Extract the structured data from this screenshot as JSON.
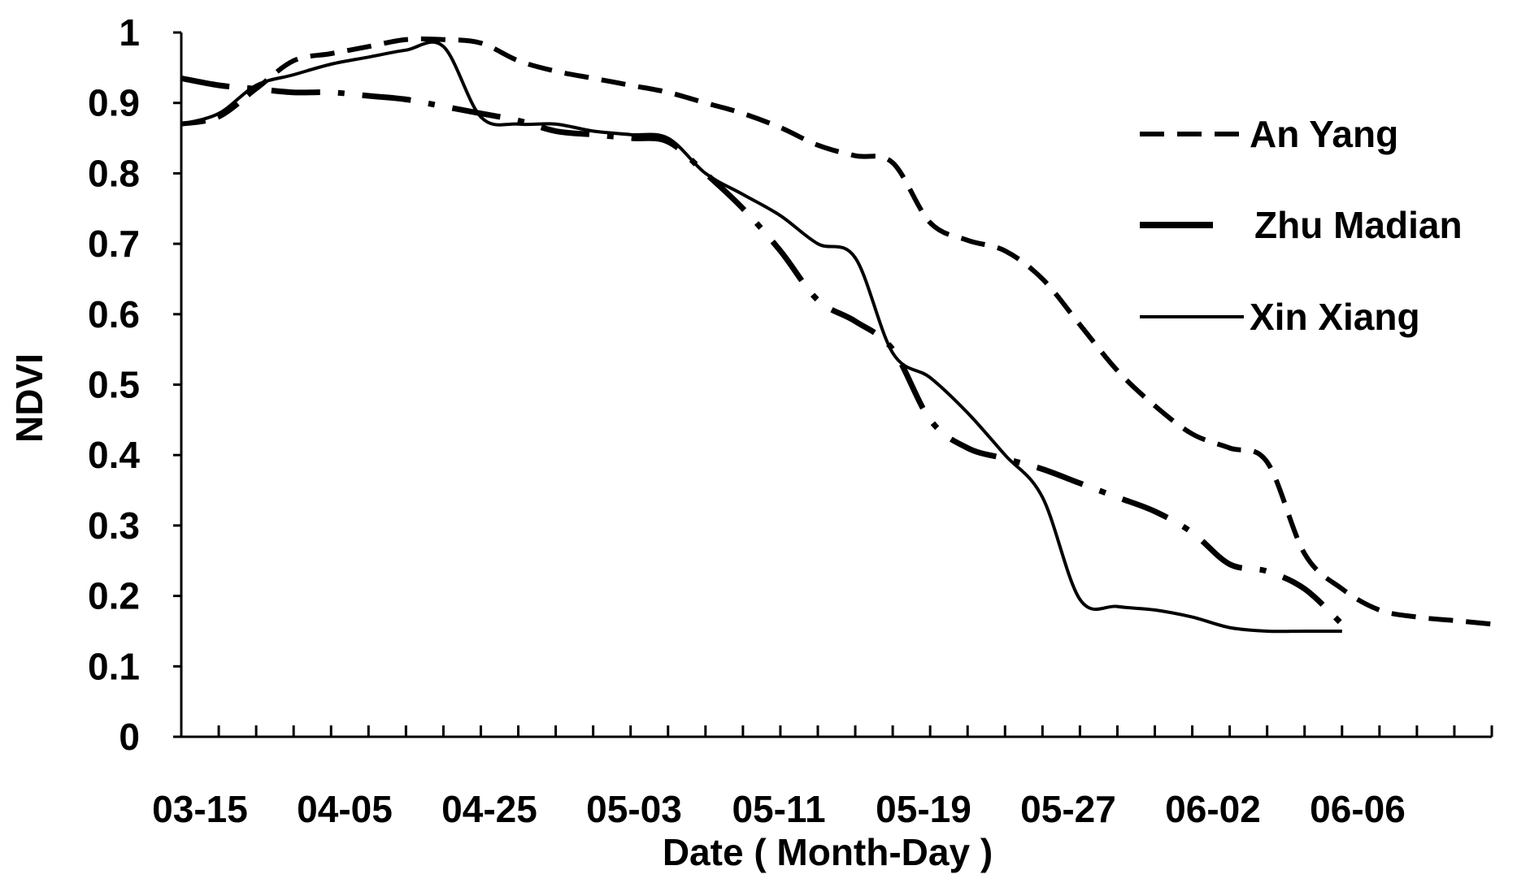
{
  "chart_data": {
    "type": "line",
    "xlabel": "Date ( Month-Day )",
    "ylabel": "NDVI",
    "ylim": [
      0,
      1
    ],
    "yticks": [
      "0",
      "0.1",
      "0.2",
      "0.3",
      "0.4",
      "0.5",
      "0.6",
      "0.7",
      "0.8",
      "0.9",
      "1"
    ],
    "x_tick_labels": [
      "03-15",
      "04-05",
      "04-25",
      "05-03",
      "05-11",
      "05-19",
      "05-27",
      "06-02",
      "06-06"
    ],
    "x_periods": 35,
    "grid": false,
    "legend_position": "top-right",
    "series": [
      {
        "name": "An Yang",
        "style": "dashed",
        "x": [
          0,
          1,
          2,
          3,
          4,
          5,
          6,
          7,
          8,
          9,
          10,
          11,
          12,
          13,
          14,
          15,
          16,
          17,
          18,
          19,
          20,
          21,
          22,
          23,
          24,
          25,
          26,
          27,
          28,
          29,
          30,
          31,
          32,
          33,
          34,
          35
        ],
        "values": [
          0.87,
          0.88,
          0.92,
          0.96,
          0.97,
          0.98,
          0.99,
          0.99,
          0.985,
          0.96,
          0.945,
          0.935,
          0.925,
          0.915,
          0.9,
          0.885,
          0.865,
          0.84,
          0.825,
          0.815,
          0.73,
          0.705,
          0.69,
          0.65,
          0.585,
          0.52,
          0.47,
          0.43,
          0.41,
          0.39,
          0.26,
          0.21,
          0.18,
          0.17,
          0.165,
          0.16
        ]
      },
      {
        "name": "Zhu Madian",
        "style": "dash-dot",
        "x": [
          0,
          1,
          2,
          3,
          4,
          5,
          6,
          7,
          8,
          9,
          10,
          11,
          12,
          13,
          14,
          15,
          16,
          17,
          18,
          19,
          20,
          21,
          22,
          23,
          24,
          25,
          26,
          27,
          28,
          29,
          30,
          31
        ],
        "values": [
          0.935,
          0.925,
          0.92,
          0.915,
          0.915,
          0.91,
          0.905,
          0.895,
          0.885,
          0.875,
          0.86,
          0.855,
          0.85,
          0.845,
          0.8,
          0.75,
          0.69,
          0.62,
          0.59,
          0.55,
          0.45,
          0.41,
          0.395,
          0.38,
          0.36,
          0.34,
          0.32,
          0.29,
          0.245,
          0.235,
          0.21,
          0.16
        ]
      },
      {
        "name": "Xin Xiang",
        "style": "solid",
        "x": [
          0,
          1,
          2,
          3,
          4,
          5,
          6,
          7,
          8,
          9,
          10,
          11,
          12,
          13,
          14,
          15,
          16,
          17,
          18,
          19,
          20,
          21,
          22,
          23,
          24,
          25,
          26,
          27,
          28,
          29,
          30,
          31
        ],
        "values": [
          0.87,
          0.885,
          0.925,
          0.94,
          0.955,
          0.965,
          0.975,
          0.98,
          0.88,
          0.87,
          0.87,
          0.86,
          0.855,
          0.85,
          0.8,
          0.77,
          0.74,
          0.7,
          0.68,
          0.545,
          0.51,
          0.46,
          0.4,
          0.34,
          0.195,
          0.185,
          0.18,
          0.17,
          0.155,
          0.15,
          0.15,
          0.15
        ]
      }
    ]
  }
}
